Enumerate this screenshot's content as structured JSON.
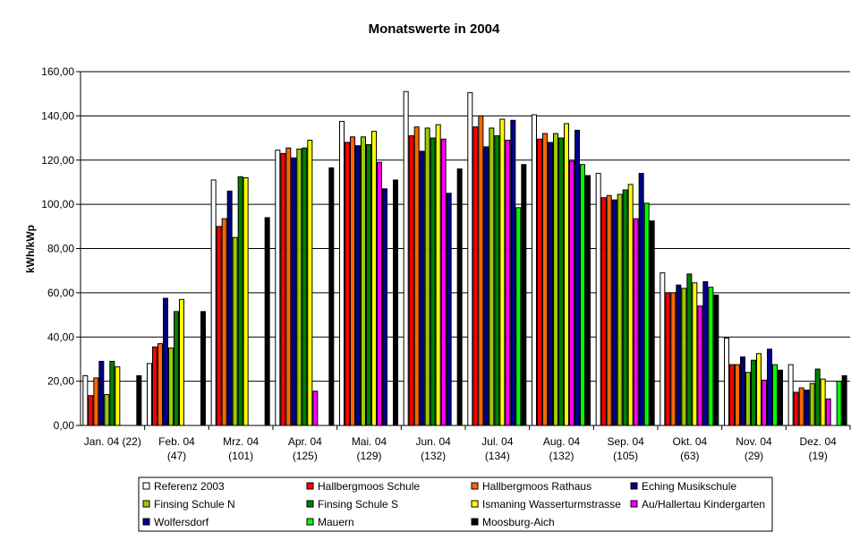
{
  "chart_data": {
    "type": "bar",
    "title": "Monatswerte in 2004",
    "xlabel": "",
    "ylabel": "kWh/kWp",
    "ylim": [
      0,
      160
    ],
    "yticks": [
      "0,00",
      "20,00",
      "40,00",
      "60,00",
      "80,00",
      "100,00",
      "120,00",
      "140,00",
      "160,00"
    ],
    "grid": true,
    "legend_position": "bottom",
    "categories": [
      [
        "Jan. 04 (22)",
        ""
      ],
      [
        "Feb. 04",
        "(47)"
      ],
      [
        "Mrz. 04",
        "(101)"
      ],
      [
        "Apr. 04",
        "(125)"
      ],
      [
        "Mai. 04",
        "(129)"
      ],
      [
        "Jun. 04",
        "(132)"
      ],
      [
        "Jul. 04",
        "(134)"
      ],
      [
        "Aug. 04",
        "(132)"
      ],
      [
        "Sep. 04",
        "(105)"
      ],
      [
        "Okt. 04",
        "(63)"
      ],
      [
        "Nov. 04",
        "(29)"
      ],
      [
        "Dez. 04",
        "(19)"
      ]
    ],
    "series": [
      {
        "name": "Referenz 2003",
        "color": "#FFFFFF",
        "values": [
          22.5,
          28,
          111,
          124.5,
          137.5,
          151,
          150.5,
          140.5,
          114,
          69,
          39.5,
          27.5
        ]
      },
      {
        "name": "Hallbergmoos Schule",
        "color": "#FF0000",
        "values": [
          13.5,
          35.5,
          90,
          123,
          128,
          131,
          135,
          129.5,
          103,
          60,
          27.5,
          15
        ]
      },
      {
        "name": "Hallbergmoos Rathaus",
        "color": "#FF6600",
        "values": [
          21.5,
          37,
          93.5,
          125.5,
          130.5,
          135,
          140,
          132,
          104,
          60,
          27.5,
          17
        ]
      },
      {
        "name": "Eching Musikschule",
        "color": "#000080",
        "values": [
          29,
          57.5,
          106,
          121,
          126.5,
          124,
          126,
          128,
          102,
          63.5,
          31,
          16
        ]
      },
      {
        "name": "Finsing Schule N",
        "color": "#99CC00",
        "values": [
          14,
          35,
          85,
          125,
          130.5,
          134.5,
          134.5,
          132,
          104.5,
          62,
          24,
          19
        ]
      },
      {
        "name": "Finsing Schule S",
        "color": "#008000",
        "values": [
          29,
          51.5,
          112.5,
          125.5,
          127,
          130,
          131,
          130,
          106.5,
          68.5,
          29.5,
          25.5
        ]
      },
      {
        "name": "Ismaning Wasserturmstrasse",
        "color": "#FFFF00",
        "values": [
          26.5,
          57,
          112,
          129,
          133,
          136,
          138.5,
          136.5,
          109,
          64.5,
          32.5,
          21
        ]
      },
      {
        "name": "Au/Hallertau Kindergarten",
        "color": "#FF00FF",
        "values": [
          0,
          0,
          0,
          15.5,
          119,
          129.5,
          129,
          119.5,
          93.5,
          54,
          20.5,
          12
        ]
      },
      {
        "name": "Wolfersdorf",
        "color": "#00008B",
        "values": [
          0,
          0,
          0,
          0,
          107,
          105,
          138,
          133.5,
          114,
          65,
          34.5,
          0
        ]
      },
      {
        "name": "Mauern",
        "color": "#00FF00",
        "values": [
          0,
          0,
          0,
          0,
          0,
          0,
          98.5,
          118,
          100.5,
          62.5,
          27.5,
          20
        ]
      },
      {
        "name": "Moosburg-Aich",
        "color": "#000000",
        "values": [
          22.5,
          51.5,
          94,
          116.5,
          111,
          116,
          118,
          113,
          92.5,
          59,
          25,
          22.5
        ]
      }
    ]
  }
}
